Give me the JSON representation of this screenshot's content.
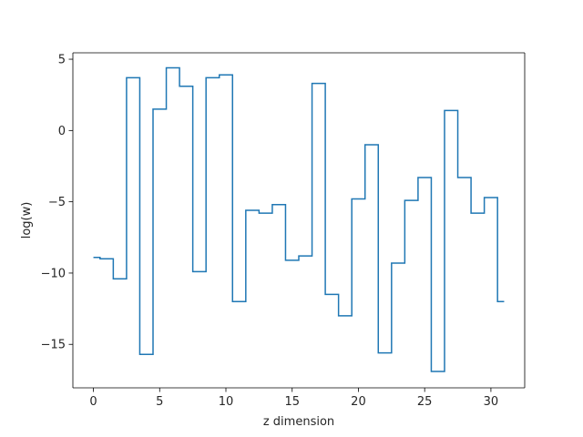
{
  "chart_data": {
    "type": "line",
    "drawstyle": "steps-mid",
    "title": "",
    "xlabel": "z dimension",
    "ylabel": "log(w)",
    "xlim": [
      -1.55,
      32.55
    ],
    "ylim": [
      -18.05,
      5.45
    ],
    "x_ticks": [
      0,
      5,
      10,
      15,
      20,
      25,
      30
    ],
    "x_tick_labels": [
      "0",
      "5",
      "10",
      "15",
      "20",
      "25",
      "30"
    ],
    "y_ticks": [
      5,
      0,
      -5,
      -10,
      -15
    ],
    "y_tick_labels": [
      "5",
      "0",
      "−5",
      "−10",
      "−15"
    ],
    "grid": false,
    "legend": "none",
    "series": [
      {
        "color": "#1f77b4",
        "x": [
          0,
          1,
          2,
          3,
          4,
          5,
          6,
          7,
          8,
          9,
          10,
          11,
          12,
          13,
          14,
          15,
          16,
          17,
          18,
          19,
          20,
          21,
          22,
          23,
          24,
          25,
          26,
          27,
          28,
          29,
          30,
          31
        ],
        "values": [
          -8.9,
          -9.0,
          -10.4,
          3.7,
          -15.7,
          1.5,
          4.4,
          3.1,
          -9.9,
          3.7,
          3.9,
          -12.0,
          -5.6,
          -5.8,
          -5.2,
          -9.1,
          -8.8,
          3.3,
          -11.5,
          -13.0,
          -4.8,
          -1.0,
          -15.6,
          -9.3,
          -4.9,
          -3.3,
          -16.9,
          1.4,
          -3.3,
          -5.8,
          -4.7,
          -12.0
        ]
      }
    ]
  }
}
